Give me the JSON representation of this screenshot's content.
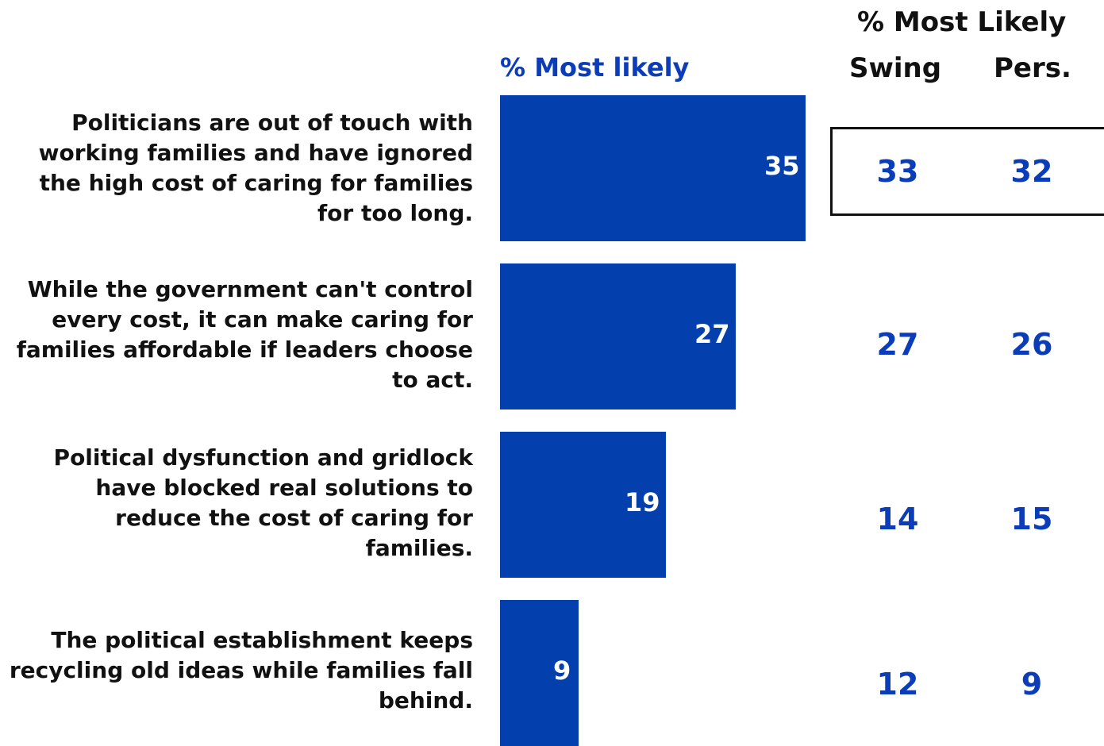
{
  "colors": {
    "bar": "#0340AE",
    "accent": "#0B3DB8",
    "text": "#111111"
  },
  "headers": {
    "bar_col": "% Most likely",
    "group": "% Most Likely",
    "col1": "Swing",
    "col2": "Pers."
  },
  "chart_data": {
    "type": "bar",
    "orientation": "horizontal",
    "categories": [
      "Politicians are out of touch with working families and have ignored the high cost of caring for families for too long.",
      "While the government can't control every cost, it can make caring for families affordable if leaders choose to act.",
      "Political dysfunction and gridlock have blocked real solutions to reduce the cost of caring for families.",
      "The political establishment keeps recycling old ideas while families fall behind."
    ],
    "values": [
      35,
      27,
      19,
      9
    ],
    "value_labels": [
      "35",
      "27",
      "19",
      "9"
    ],
    "table": {
      "Swing": [
        "33",
        "27",
        "14",
        "12"
      ],
      "Pers.": [
        "32",
        "26",
        "15",
        "9"
      ]
    },
    "highlighted_row": 0
  }
}
